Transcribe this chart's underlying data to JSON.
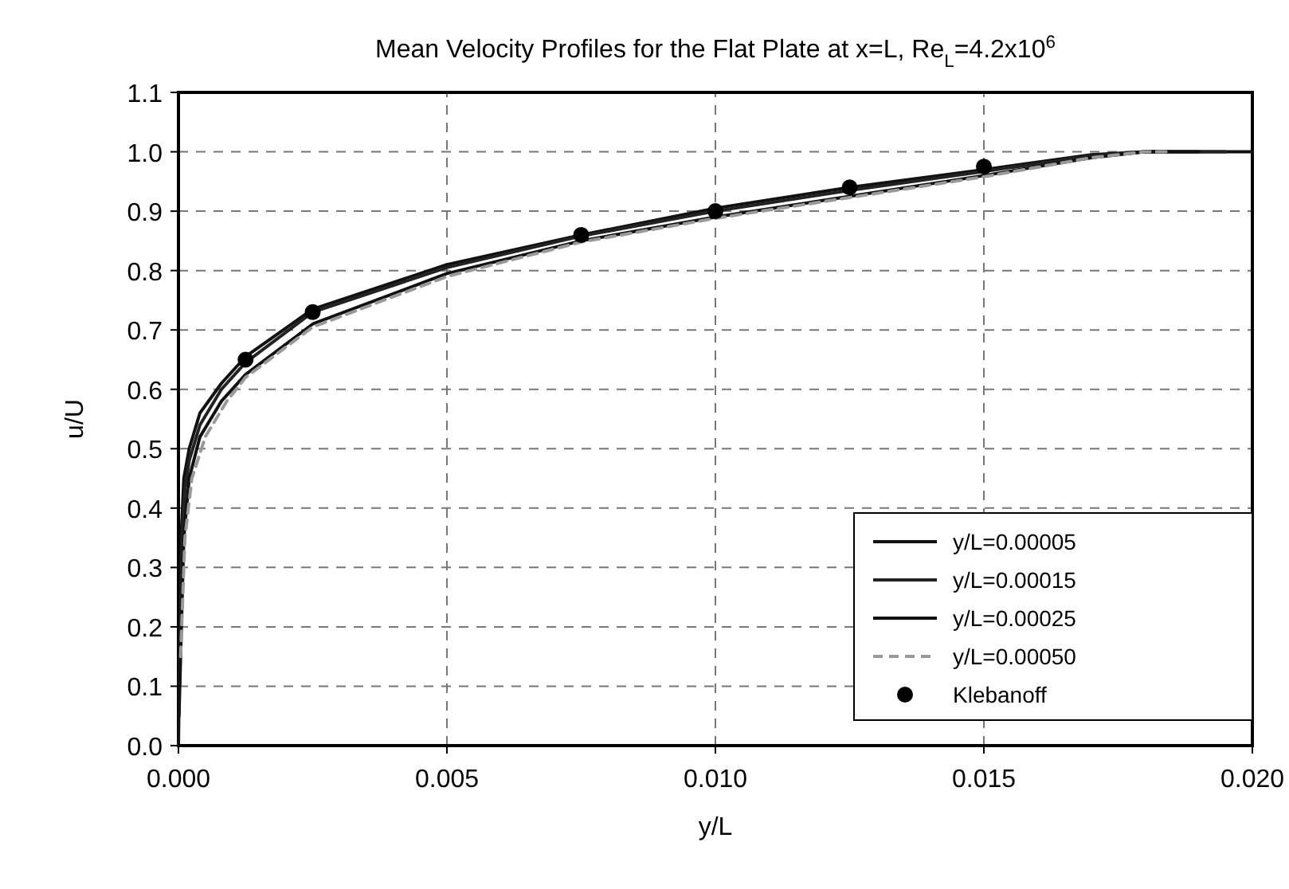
{
  "chart_data": {
    "type": "line",
    "title": "Mean Velocity Profiles for the Flat Plate at x=L, Re$_{L}$=4.2x10$^{6}$",
    "xlabel": "y/L",
    "ylabel": "u/U",
    "xlim": [
      0,
      0.02
    ],
    "xticks": [
      {
        "value": 0,
        "label": "0.000"
      },
      {
        "value": 0.005,
        "label": "0.005"
      },
      {
        "value": 0.01,
        "label": "0.010"
      },
      {
        "value": 0.015,
        "label": "0.015"
      },
      {
        "value": 0.02,
        "label": "0.020"
      }
    ],
    "ylim": [
      0,
      1.1
    ],
    "yticks": [
      {
        "value": 0,
        "label": "0.0"
      },
      {
        "value": 0.1,
        "label": "0.1"
      },
      {
        "value": 0.2,
        "label": "0.2"
      },
      {
        "value": 0.3,
        "label": "0.3"
      },
      {
        "value": 0.4,
        "label": "0.4"
      },
      {
        "value": 0.5,
        "label": "0.5"
      },
      {
        "value": 0.6,
        "label": "0.6"
      },
      {
        "value": 0.7,
        "label": "0.7"
      },
      {
        "value": 0.8,
        "label": "0.8"
      },
      {
        "value": 0.9,
        "label": "0.9"
      },
      {
        "value": 1.0,
        "label": "1.0"
      },
      {
        "value": 1.1,
        "label": "1.1"
      }
    ],
    "grid": true,
    "legend": "bottom right",
    "series": [
      {
        "name": "y/L=0.00005",
        "color": "#111111",
        "line_style": "solid",
        "x": [
          0,
          5e-05,
          0.0001,
          0.0002,
          0.0004,
          0.0008,
          0.00125,
          0.0025,
          0.005,
          0.0075,
          0.01,
          0.0125,
          0.015,
          0.017,
          0.018,
          0.02
        ],
        "values": [
          0,
          0.35,
          0.45,
          0.5,
          0.56,
          0.61,
          0.655,
          0.735,
          0.81,
          0.86,
          0.905,
          0.94,
          0.97,
          0.995,
          1.0,
          1.0
        ]
      },
      {
        "name": "y/L=0.00015",
        "color": "#222222",
        "line_style": "solid",
        "x": [
          2e-05,
          7e-05,
          0.00012,
          0.0002,
          0.0004,
          0.0008,
          0.00125,
          0.0025,
          0.005,
          0.0075,
          0.01,
          0.0125,
          0.015,
          0.017,
          0.018,
          0.0195
        ],
        "values": [
          0.1,
          0.35,
          0.43,
          0.48,
          0.54,
          0.6,
          0.645,
          0.73,
          0.805,
          0.858,
          0.9,
          0.935,
          0.967,
          0.993,
          1.0,
          1.0
        ]
      },
      {
        "name": "y/L=0.00025",
        "color": "#111111",
        "line_style": "solid",
        "x": [
          1e-05,
          0.0001,
          0.0002,
          0.0004,
          0.0008,
          0.00125,
          0.0025,
          0.005,
          0.0075,
          0.01,
          0.0125,
          0.015,
          0.017,
          0.018,
          0.019
        ],
        "values": [
          0.05,
          0.35,
          0.45,
          0.52,
          0.58,
          0.625,
          0.71,
          0.795,
          0.85,
          0.89,
          0.925,
          0.96,
          0.99,
          1.0,
          1.0
        ]
      },
      {
        "name": "y/L=0.00050",
        "color": "#999999",
        "line_style": "dashed",
        "x": [
          4e-05,
          0.00012,
          0.00025,
          0.0005,
          0.0009,
          0.00125,
          0.0025,
          0.005,
          0.0075,
          0.01,
          0.0125,
          0.015,
          0.017,
          0.018,
          0.0185
        ],
        "values": [
          0.15,
          0.35,
          0.45,
          0.52,
          0.58,
          0.62,
          0.705,
          0.79,
          0.848,
          0.888,
          0.923,
          0.958,
          0.99,
          1.0,
          1.0
        ]
      },
      {
        "name": "Klebanoff",
        "type": "scatter",
        "marker": "circle",
        "color": "#000000",
        "x": [
          0.00125,
          0.0025,
          0.0075,
          0.01,
          0.0125,
          0.015
        ],
        "values": [
          0.65,
          0.73,
          0.86,
          0.9,
          0.94,
          0.975
        ]
      }
    ]
  }
}
